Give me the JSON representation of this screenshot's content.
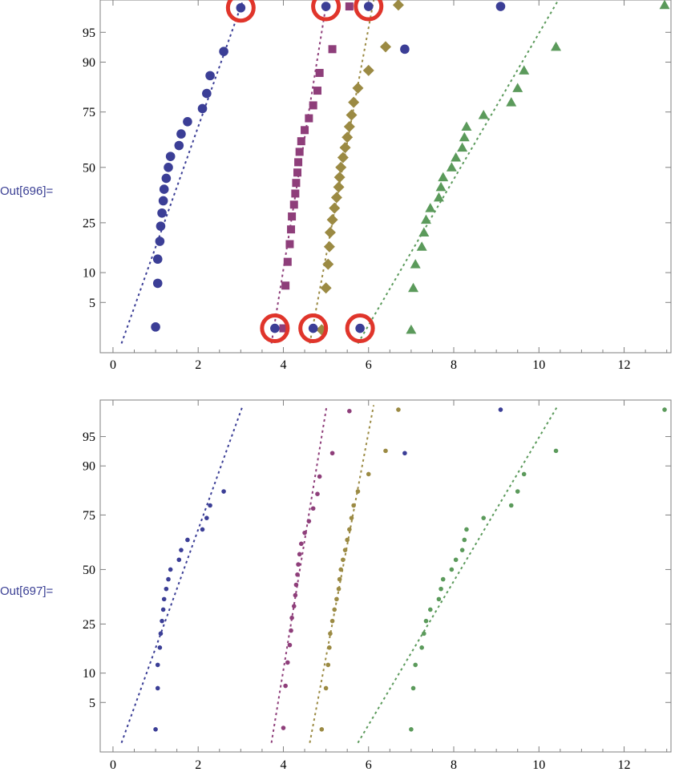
{
  "cells": [
    {
      "label": "Out[696]="
    },
    {
      "label": "Out[697]="
    }
  ],
  "colors": {
    "blue": "#3b3e96",
    "purple": "#8e3e7a",
    "olive": "#9b8a43",
    "green": "#5b9a5b",
    "highlight": "#e0352b",
    "label": "#3a3f94"
  },
  "chart_data": [
    {
      "type": "scatter",
      "title": "",
      "xlabel": "",
      "ylabel": "",
      "xlim": [
        -0.3,
        13.1
      ],
      "x_ticks": [
        0,
        2,
        4,
        6,
        8,
        10,
        12
      ],
      "y_ticks": [
        5,
        10,
        25,
        50,
        75,
        90,
        95
      ],
      "y_scale": "normal-probability",
      "marker_size": "large",
      "series": [
        {
          "color_key": "blue",
          "marker": "circle",
          "x": [
            1.0,
            1.05,
            1.05,
            1.1,
            1.12,
            1.15,
            1.18,
            1.2,
            1.25,
            1.3,
            1.35,
            1.55,
            1.6,
            1.75,
            2.1,
            2.2,
            2.28,
            2.6,
            3.0
          ],
          "y": [
            2.6,
            7.9,
            13.2,
            18.4,
            23.7,
            28.9,
            34.2,
            39.5,
            44.7,
            50.0,
            55.3,
            60.5,
            65.8,
            71.1,
            76.3,
            81.6,
            86.8,
            92.1,
            97.4
          ],
          "fit": {
            "x0": 0.2,
            "y0": 1.6,
            "x1": 3.05,
            "y1": 97.9
          }
        },
        {
          "color_key": "purple",
          "marker": "square",
          "x": [
            4.0,
            4.05,
            4.1,
            4.15,
            4.18,
            4.2,
            4.25,
            4.28,
            4.3,
            4.33,
            4.35,
            4.38,
            4.42,
            4.5,
            4.6,
            4.7,
            4.8,
            4.85,
            5.15,
            5.55
          ],
          "y": [
            2.5,
            7.5,
            12.5,
            17.5,
            22.5,
            27.5,
            32.5,
            37.5,
            42.5,
            47.5,
            52.5,
            57.5,
            62.5,
            67.5,
            72.5,
            77.5,
            82.5,
            87.5,
            92.5,
            97.5
          ],
          "fit": {
            "x0": 3.72,
            "y0": 1.6,
            "x1": 5.02,
            "y1": 97.9
          }
        },
        {
          "color_key": "olive",
          "marker": "diamond",
          "x": [
            4.9,
            5.0,
            5.05,
            5.08,
            5.1,
            5.15,
            5.2,
            5.25,
            5.3,
            5.32,
            5.35,
            5.4,
            5.45,
            5.5,
            5.55,
            5.6,
            5.65,
            5.75,
            6.0,
            6.4,
            6.7
          ],
          "y": [
            2.4,
            7.1,
            11.9,
            16.7,
            21.4,
            26.2,
            31.0,
            35.7,
            40.5,
            45.2,
            50.0,
            54.8,
            59.5,
            64.3,
            69.0,
            73.8,
            78.6,
            83.3,
            88.1,
            92.9,
            97.6
          ],
          "fit": {
            "x0": 4.62,
            "y0": 1.6,
            "x1": 6.12,
            "y1": 97.9
          }
        },
        {
          "color_key": "green",
          "marker": "triangle",
          "x": [
            7.0,
            7.05,
            7.1,
            7.25,
            7.3,
            7.35,
            7.45,
            7.65,
            7.7,
            7.75,
            7.95,
            8.05,
            8.2,
            8.25,
            8.3,
            8.7,
            9.35,
            9.5,
            9.65,
            10.4,
            12.95
          ],
          "y": [
            2.4,
            7.1,
            11.9,
            16.7,
            21.4,
            26.2,
            31.0,
            35.7,
            40.5,
            45.2,
            50.0,
            54.8,
            59.5,
            64.3,
            69.0,
            73.8,
            78.6,
            83.3,
            88.1,
            92.9,
            97.6
          ],
          "fit": {
            "x0": 5.75,
            "y0": 1.6,
            "x1": 10.45,
            "y1": 97.9
          }
        },
        {
          "color_key": "blue",
          "marker": "circle",
          "x": [
            3.8,
            4.7,
            5.8,
            5.0,
            6.0,
            6.85,
            9.1
          ],
          "y": [
            2.5,
            2.5,
            2.5,
            97.5,
            97.5,
            92.5,
            97.5
          ]
        }
      ],
      "highlights": [
        {
          "x": 3.8,
          "y": 2.5
        },
        {
          "x": 4.7,
          "y": 2.5
        },
        {
          "x": 5.8,
          "y": 2.5
        },
        {
          "x": 3.0,
          "y": 97.4
        },
        {
          "x": 5.0,
          "y": 97.5
        },
        {
          "x": 6.0,
          "y": 97.5
        }
      ]
    },
    {
      "type": "scatter",
      "title": "",
      "xlabel": "",
      "ylabel": "",
      "xlim": [
        -0.3,
        13.1
      ],
      "x_ticks": [
        0,
        2,
        4,
        6,
        8,
        10,
        12
      ],
      "y_ticks": [
        5,
        10,
        25,
        50,
        75,
        90,
        95
      ],
      "y_scale": "normal-probability",
      "marker_size": "small",
      "series": [
        {
          "color_key": "blue",
          "marker": "circle",
          "x": [
            1.0,
            1.05,
            1.05,
            1.1,
            1.12,
            1.15,
            1.18,
            1.2,
            1.25,
            1.3,
            1.35,
            1.55,
            1.6,
            1.75,
            2.1,
            2.2,
            2.28,
            2.6,
            6.85,
            9.1
          ],
          "y": [
            2.4,
            7.1,
            11.9,
            16.7,
            21.4,
            26.2,
            31.0,
            35.7,
            40.5,
            45.2,
            50.0,
            54.8,
            59.5,
            64.3,
            69.0,
            73.8,
            78.6,
            83.3,
            92.5,
            97.6
          ],
          "fit": {
            "x0": 0.2,
            "y0": 1.6,
            "x1": 3.05,
            "y1": 97.9
          }
        },
        {
          "color_key": "purple",
          "marker": "circle",
          "x": [
            4.0,
            4.05,
            4.1,
            4.15,
            4.18,
            4.2,
            4.25,
            4.28,
            4.3,
            4.33,
            4.35,
            4.38,
            4.42,
            4.5,
            4.6,
            4.7,
            4.8,
            4.85,
            5.15,
            5.55
          ],
          "y": [
            2.5,
            7.5,
            12.5,
            17.5,
            22.5,
            27.5,
            32.5,
            37.5,
            42.5,
            47.5,
            52.5,
            57.5,
            62.5,
            67.5,
            72.5,
            77.5,
            82.5,
            87.5,
            92.5,
            97.5
          ],
          "fit": {
            "x0": 3.72,
            "y0": 1.6,
            "x1": 5.02,
            "y1": 97.9
          }
        },
        {
          "color_key": "olive",
          "marker": "circle",
          "x": [
            4.9,
            5.0,
            5.05,
            5.08,
            5.1,
            5.15,
            5.2,
            5.25,
            5.3,
            5.32,
            5.35,
            5.4,
            5.45,
            5.5,
            5.55,
            5.6,
            5.65,
            5.75,
            6.0,
            6.4,
            6.7
          ],
          "y": [
            2.4,
            7.1,
            11.9,
            16.7,
            21.4,
            26.2,
            31.0,
            35.7,
            40.5,
            45.2,
            50.0,
            54.8,
            59.5,
            64.3,
            69.0,
            73.8,
            78.6,
            83.3,
            88.1,
            92.9,
            97.6
          ],
          "fit": {
            "x0": 4.62,
            "y0": 1.6,
            "x1": 6.12,
            "y1": 97.9
          }
        },
        {
          "color_key": "green",
          "marker": "circle",
          "x": [
            7.0,
            7.05,
            7.1,
            7.25,
            7.3,
            7.35,
            7.45,
            7.65,
            7.7,
            7.75,
            7.95,
            8.05,
            8.2,
            8.25,
            8.3,
            8.7,
            9.35,
            9.5,
            9.65,
            10.4,
            12.95
          ],
          "y": [
            2.4,
            7.1,
            11.9,
            16.7,
            21.4,
            26.2,
            31.0,
            35.7,
            40.5,
            45.2,
            50.0,
            54.8,
            59.5,
            64.3,
            69.0,
            73.8,
            78.6,
            83.3,
            88.1,
            92.9,
            97.6
          ],
          "fit": {
            "x0": 5.75,
            "y0": 1.6,
            "x1": 10.45,
            "y1": 97.9
          }
        }
      ],
      "highlights": []
    }
  ]
}
